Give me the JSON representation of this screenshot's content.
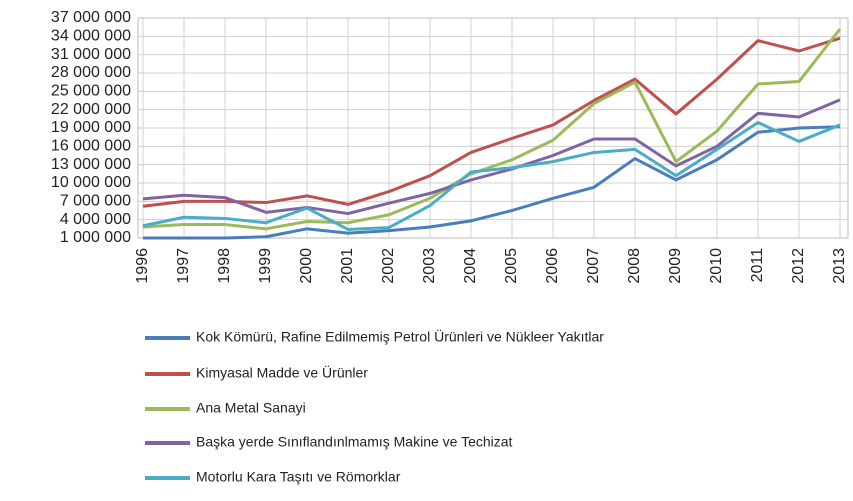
{
  "chart_data": {
    "type": "line",
    "categories": [
      "1996",
      "1997",
      "1998",
      "1999",
      "2000",
      "2001",
      "2002",
      "2003",
      "2004",
      "2005",
      "2006",
      "2007",
      "2008",
      "2009",
      "2010",
      "2011",
      "2012",
      "2013"
    ],
    "series": [
      {
        "name": "Kok Kömürü, Rafine Edilmemiş Petrol Ürünleri ve Nükleer Yakıtlar",
        "color": "#4a7ebb",
        "values": [
          1000000,
          1000000,
          1000000,
          1200000,
          2500000,
          1800000,
          2200000,
          2800000,
          3800000,
          5500000,
          7500000,
          9300000,
          14000000,
          10500000,
          13800000,
          18300000,
          19000000,
          19200000
        ]
      },
      {
        "name": "Kimyasal Madde ve Ürünler",
        "color": "#c0504d",
        "values": [
          6200000,
          7000000,
          7000000,
          6800000,
          7900000,
          6500000,
          8600000,
          11200000,
          15000000,
          17300000,
          19500000,
          23500000,
          27000000,
          21300000,
          27000000,
          33300000,
          31600000,
          33700000
        ]
      },
      {
        "name": "Ana Metal Sanayi",
        "color": "#9bbb59",
        "values": [
          2800000,
          3200000,
          3200000,
          2500000,
          3700000,
          3500000,
          4800000,
          7500000,
          11500000,
          13800000,
          17000000,
          23000000,
          26500000,
          13500000,
          18500000,
          26200000,
          26600000,
          35200000
        ]
      },
      {
        "name": "Başka yerde Sınıflandınlmamış Makine ve Techizat",
        "color": "#8064a2",
        "values": [
          7400000,
          8000000,
          7600000,
          5200000,
          6000000,
          5000000,
          6700000,
          8300000,
          10500000,
          12300000,
          14500000,
          17200000,
          17200000,
          12800000,
          16000000,
          21400000,
          20800000,
          23600000
        ]
      },
      {
        "name": "Motorlu Kara Taşıtı ve Römorklar",
        "color": "#4bacc6",
        "values": [
          3000000,
          4400000,
          4200000,
          3500000,
          5900000,
          2400000,
          2700000,
          6300000,
          11800000,
          12500000,
          13500000,
          15000000,
          15500000,
          11200000,
          15500000,
          19900000,
          16800000,
          19500000
        ]
      }
    ],
    "ylim": [
      1000000,
      37000000
    ],
    "yticks": [
      {
        "value": 1000000,
        "label": "1 000 000"
      },
      {
        "value": 4000000,
        "label": "4 000 000"
      },
      {
        "value": 7000000,
        "label": "7 000 000"
      },
      {
        "value": 10000000,
        "label": "10 000 000"
      },
      {
        "value": 13000000,
        "label": "13 000 000"
      },
      {
        "value": 16000000,
        "label": "16 000 000"
      },
      {
        "value": 19000000,
        "label": "19 000 000"
      },
      {
        "value": 22000000,
        "label": "22 000 000"
      },
      {
        "value": 25000000,
        "label": "25 000 000"
      },
      {
        "value": 28000000,
        "label": "28 000 000"
      },
      {
        "value": 31000000,
        "label": "31 000 000"
      },
      {
        "value": 34000000,
        "label": "34 000 000"
      },
      {
        "value": 37000000,
        "label": "37 000 000"
      }
    ],
    "grid": true,
    "legend": "bottom"
  }
}
